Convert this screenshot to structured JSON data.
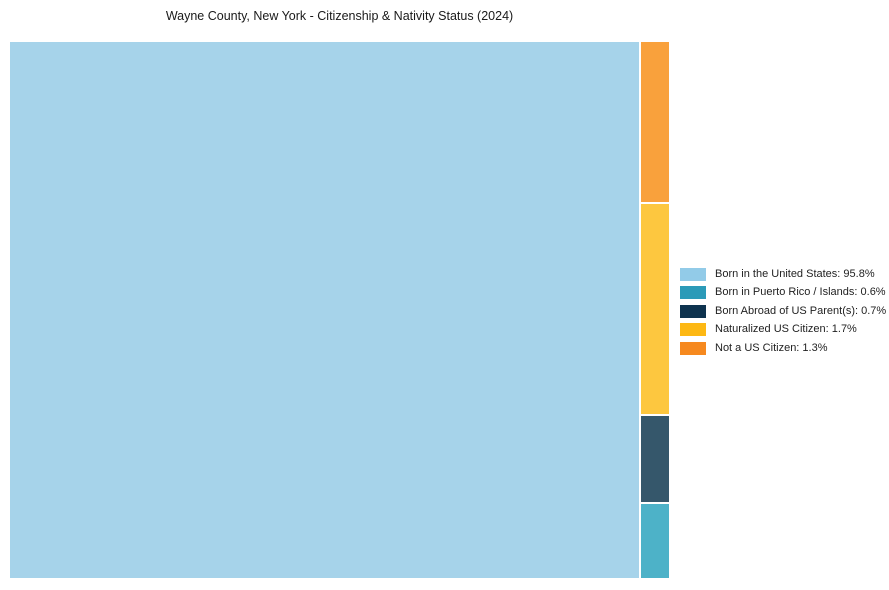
{
  "chart_data": {
    "type": "treemap",
    "title": "Wayne County, New York - Citizenship & Nativity Status (2024)",
    "unit": "%",
    "legend_position": "right",
    "background_color": "#ffffff",
    "series": [
      {
        "label": "Born in the United States",
        "value": 95.8,
        "block_color": "#A6D3EA",
        "legend_color": "#92CBE8"
      },
      {
        "label": "Born in Puerto Rico / Islands",
        "value": 0.6,
        "block_color": "#4DB2C8",
        "legend_color": "#2B9AB8"
      },
      {
        "label": "Born Abroad of US Parent(s)",
        "value": 0.7,
        "block_color": "#35576B",
        "legend_color": "#0E334F"
      },
      {
        "label": "Naturalized US Citizen",
        "value": 1.7,
        "block_color": "#FDC73F",
        "legend_color": "#FDB814"
      },
      {
        "label": "Not a US Citizen",
        "value": 1.3,
        "block_color": "#F9A13C",
        "legend_color": "#F6891F"
      }
    ],
    "layout": {
      "main_block_index": 0,
      "side_column_order_top_to_bottom": [
        4,
        3,
        2,
        1
      ]
    }
  }
}
